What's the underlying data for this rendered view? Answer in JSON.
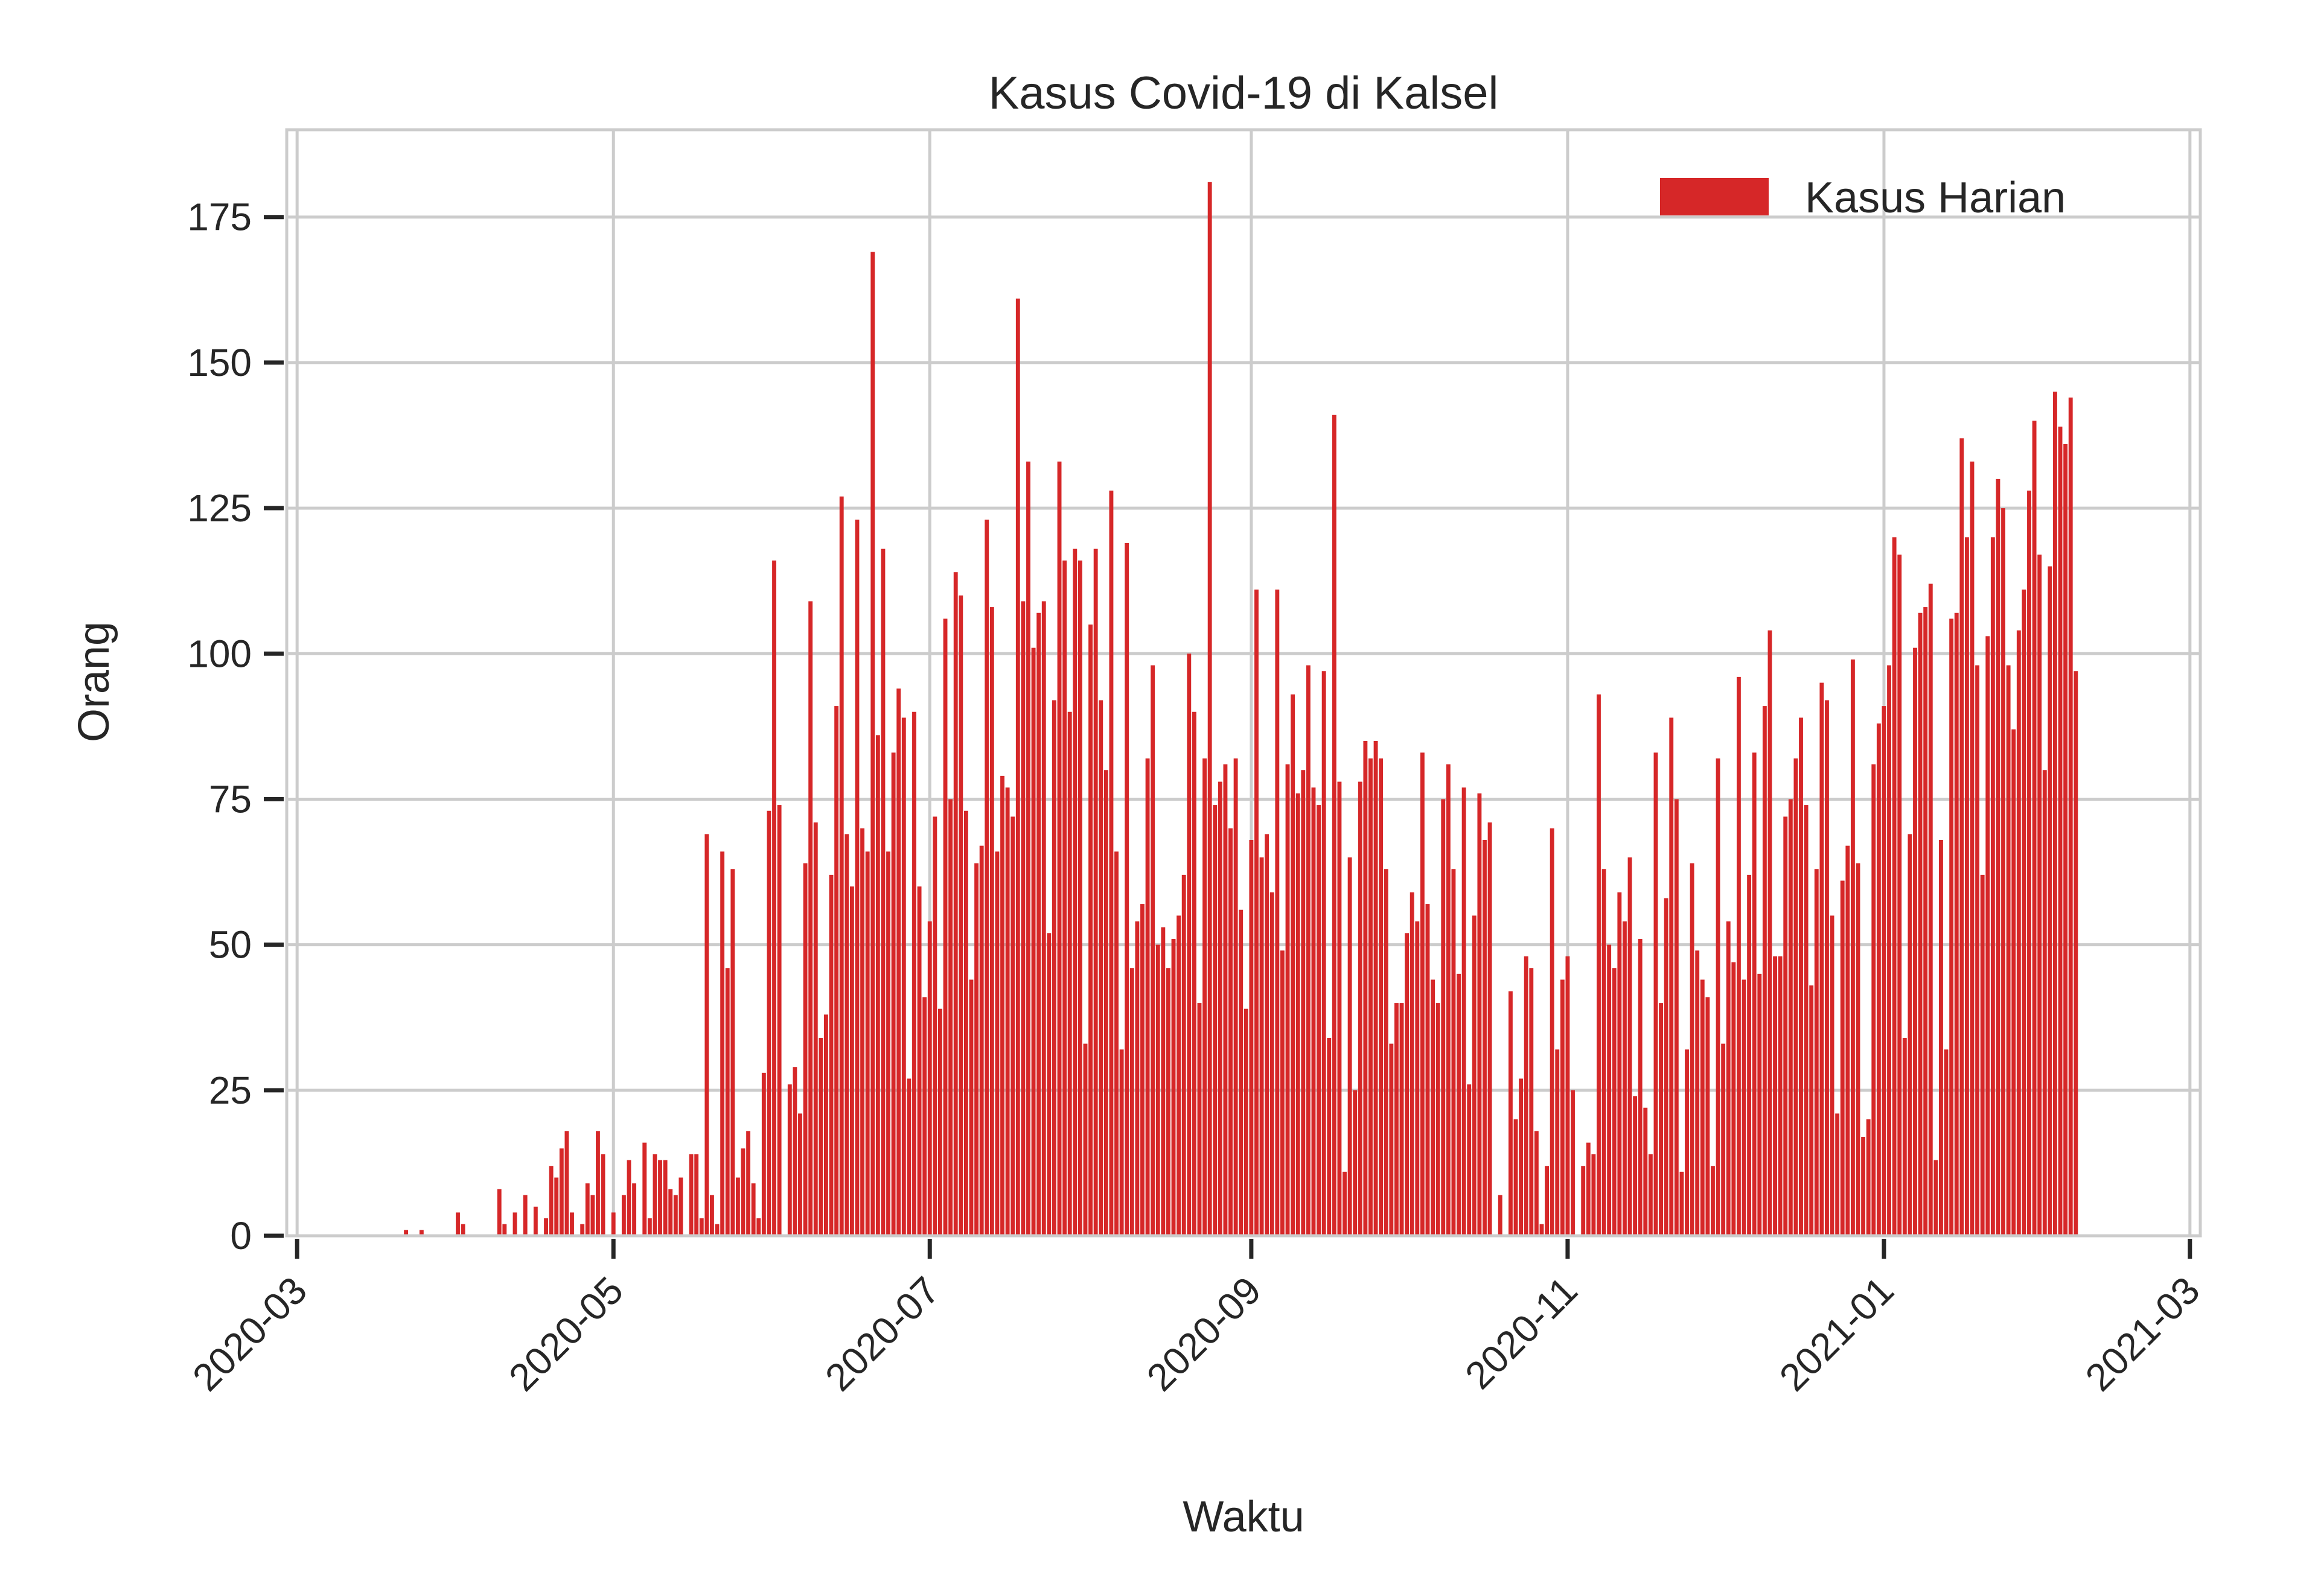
{
  "chart_data": {
    "type": "bar",
    "title": "Kasus Covid-19 di Kalsel",
    "xlabel": "Waktu",
    "ylabel": "Orang",
    "legend": {
      "entries": [
        "Kasus Harian"
      ],
      "placement": "top-right"
    },
    "grid": true,
    "colors": {
      "bar": "#d62728",
      "grid": "#cccccc",
      "axis": "#cccccc",
      "text": "#262626"
    },
    "xlim": [
      "2020-02-28",
      "2021-03-03"
    ],
    "ylim": [
      0,
      190
    ],
    "xticks": [
      "2020-03",
      "2020-05",
      "2020-07",
      "2020-09",
      "2020-11",
      "2021-01",
      "2021-03"
    ],
    "yticks": [
      "0",
      "25",
      "50",
      "75",
      "100",
      "125",
      "150",
      "175"
    ],
    "series": [
      {
        "name": "Kasus Harian",
        "start": "2020-03-01",
        "values": [
          0,
          0,
          0,
          0,
          0,
          0,
          0,
          0,
          0,
          0,
          0,
          0,
          0,
          0,
          0,
          0,
          0,
          0,
          0,
          0,
          0,
          1,
          0,
          0,
          1,
          0,
          0,
          0,
          0,
          0,
          0,
          4,
          2,
          0,
          0,
          0,
          0,
          0,
          0,
          8,
          2,
          0,
          4,
          0,
          7,
          0,
          5,
          0,
          3,
          12,
          10,
          15,
          18,
          4,
          0,
          2,
          9,
          7,
          18,
          14,
          0,
          4,
          0,
          7,
          13,
          9,
          0,
          16,
          3,
          14,
          13,
          13,
          8,
          7,
          10,
          0,
          14,
          14,
          3,
          69,
          7,
          2,
          66,
          46,
          63,
          10,
          15,
          18,
          9,
          3,
          28,
          73,
          116,
          74,
          0,
          26,
          29,
          21,
          64,
          109,
          71,
          34,
          38,
          62,
          91,
          127,
          69,
          60,
          123,
          70,
          66,
          169,
          86,
          118,
          66,
          83,
          94,
          89,
          27,
          90,
          60,
          41,
          54,
          72,
          39,
          106,
          75,
          114,
          110,
          73,
          44,
          64,
          67,
          123,
          108,
          66,
          79,
          77,
          72,
          161,
          109,
          133,
          101,
          107,
          109,
          52,
          92,
          133,
          116,
          90,
          118,
          116,
          33,
          105,
          118,
          92,
          80,
          128,
          66,
          32,
          119,
          46,
          54,
          57,
          82,
          98,
          50,
          53,
          46,
          51,
          55,
          62,
          100,
          90,
          40,
          82,
          181,
          74,
          78,
          81,
          70,
          82,
          56,
          39,
          68,
          111,
          65,
          69,
          59,
          111,
          49,
          81,
          93,
          76,
          80,
          98,
          77,
          74,
          97,
          34,
          141,
          78,
          11,
          65,
          25,
          78,
          85,
          82,
          85,
          82,
          63,
          33,
          40,
          40,
          52,
          59,
          54,
          83,
          57,
          44,
          40,
          75,
          81,
          63,
          45,
          77,
          26,
          55,
          76,
          68,
          71,
          0,
          7,
          0,
          42,
          20,
          27,
          48,
          46,
          18,
          2,
          12,
          70,
          32,
          44,
          48,
          25,
          0,
          12,
          16,
          14,
          93,
          63,
          50,
          46,
          59,
          54,
          65,
          24,
          51,
          22,
          14,
          83,
          40,
          58,
          89,
          75,
          11,
          32,
          64,
          49,
          44,
          41,
          12,
          82,
          33,
          54,
          47,
          96,
          44,
          62,
          83,
          45,
          91,
          104,
          48,
          48,
          72,
          75,
          82,
          89,
          74,
          43,
          63,
          95,
          92,
          55,
          21,
          61,
          67,
          99,
          64,
          17,
          20,
          81,
          88,
          91,
          98,
          120,
          117,
          34,
          69,
          101,
          107,
          108,
          112,
          13,
          68,
          32,
          106,
          107,
          137,
          120,
          133,
          98,
          62,
          103,
          120,
          130,
          125,
          98,
          87,
          104,
          111,
          128,
          140,
          117,
          80,
          115,
          145,
          139,
          136,
          144,
          97
        ]
      }
    ]
  }
}
